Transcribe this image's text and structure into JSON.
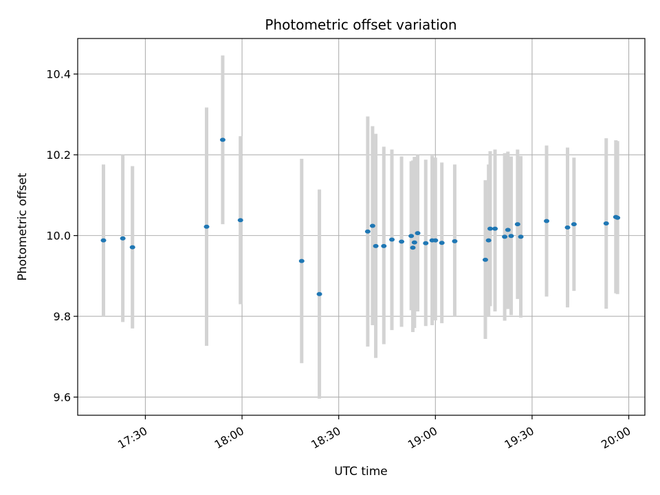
{
  "chart_data": {
    "type": "scatter",
    "title": "Photometric offset variation",
    "xlabel": "UTC time",
    "ylabel": "Photometric offset",
    "x_axis_type": "time",
    "xlim": [
      "17:09",
      "20:05"
    ],
    "ylim": [
      9.555,
      10.488
    ],
    "x_ticks": [
      "17:30",
      "18:00",
      "18:30",
      "19:00",
      "19:30",
      "20:00"
    ],
    "y_ticks": [
      9.6,
      9.8,
      10.0,
      10.2,
      10.4
    ],
    "y_tick_labels": [
      "9.6",
      "9.8",
      "10.0",
      "10.2",
      "10.4"
    ],
    "grid": true,
    "point_color": "#1f77b4",
    "errorbar_color": "#d3d3d3",
    "points": [
      {
        "t": "17:17:00",
        "y": 9.988,
        "lo": 9.8,
        "hi": 10.176
      },
      {
        "t": "17:23:00",
        "y": 9.993,
        "lo": 9.786,
        "hi": 10.2
      },
      {
        "t": "17:26:00",
        "y": 9.971,
        "lo": 9.77,
        "hi": 10.172
      },
      {
        "t": "17:49:00",
        "y": 10.022,
        "lo": 9.727,
        "hi": 10.317
      },
      {
        "t": "17:54:00",
        "y": 10.237,
        "lo": 10.028,
        "hi": 10.446
      },
      {
        "t": "17:59:30",
        "y": 10.038,
        "lo": 9.83,
        "hi": 10.246
      },
      {
        "t": "18:18:30",
        "y": 9.937,
        "lo": 9.684,
        "hi": 10.19
      },
      {
        "t": "18:24:00",
        "y": 9.855,
        "lo": 9.596,
        "hi": 10.114
      },
      {
        "t": "18:39:00",
        "y": 10.01,
        "lo": 9.725,
        "hi": 10.295
      },
      {
        "t": "18:40:30",
        "y": 10.024,
        "lo": 9.778,
        "hi": 10.271
      },
      {
        "t": "18:41:30",
        "y": 9.974,
        "lo": 9.697,
        "hi": 10.252
      },
      {
        "t": "18:44:00",
        "y": 9.974,
        "lo": 9.731,
        "hi": 10.22
      },
      {
        "t": "18:46:30",
        "y": 9.99,
        "lo": 9.766,
        "hi": 10.213
      },
      {
        "t": "18:49:30",
        "y": 9.985,
        "lo": 9.774,
        "hi": 10.196
      },
      {
        "t": "18:52:30",
        "y": 9.999,
        "lo": 9.815,
        "hi": 10.184
      },
      {
        "t": "18:53:00",
        "y": 9.97,
        "lo": 9.761,
        "hi": 10.186
      },
      {
        "t": "18:53:30",
        "y": 9.983,
        "lo": 9.771,
        "hi": 10.195
      },
      {
        "t": "18:54:30",
        "y": 10.006,
        "lo": 9.812,
        "hi": 10.2
      },
      {
        "t": "18:57:00",
        "y": 9.981,
        "lo": 9.776,
        "hi": 10.188
      },
      {
        "t": "18:59:00",
        "y": 9.988,
        "lo": 9.778,
        "hi": 10.198
      },
      {
        "t": "19:00:00",
        "y": 9.988,
        "lo": 9.79,
        "hi": 10.193
      },
      {
        "t": "19:02:00",
        "y": 9.982,
        "lo": 9.783,
        "hi": 10.181
      },
      {
        "t": "19:06:00",
        "y": 9.986,
        "lo": 9.8,
        "hi": 10.176
      },
      {
        "t": "19:15:30",
        "y": 9.94,
        "lo": 9.744,
        "hi": 10.137
      },
      {
        "t": "19:16:30",
        "y": 9.988,
        "lo": 9.8,
        "hi": 10.176
      },
      {
        "t": "19:17:00",
        "y": 10.017,
        "lo": 9.825,
        "hi": 10.209
      },
      {
        "t": "19:18:30",
        "y": 10.017,
        "lo": 9.812,
        "hi": 10.213
      },
      {
        "t": "19:21:30",
        "y": 9.997,
        "lo": 9.789,
        "hi": 10.204
      },
      {
        "t": "19:22:30",
        "y": 10.014,
        "lo": 9.818,
        "hi": 10.208
      },
      {
        "t": "19:23:30",
        "y": 9.999,
        "lo": 9.803,
        "hi": 10.196
      },
      {
        "t": "19:25:30",
        "y": 10.028,
        "lo": 9.843,
        "hi": 10.213
      },
      {
        "t": "19:26:30",
        "y": 9.997,
        "lo": 9.797,
        "hi": 10.197
      },
      {
        "t": "19:34:30",
        "y": 10.036,
        "lo": 9.849,
        "hi": 10.223
      },
      {
        "t": "19:41:00",
        "y": 10.02,
        "lo": 9.822,
        "hi": 10.218
      },
      {
        "t": "19:43:00",
        "y": 10.028,
        "lo": 9.863,
        "hi": 10.193
      },
      {
        "t": "19:53:00",
        "y": 10.03,
        "lo": 9.819,
        "hi": 10.241
      },
      {
        "t": "19:56:00",
        "y": 10.046,
        "lo": 9.857,
        "hi": 10.236
      },
      {
        "t": "19:56:30",
        "y": 10.044,
        "lo": 9.855,
        "hi": 10.234
      }
    ]
  }
}
